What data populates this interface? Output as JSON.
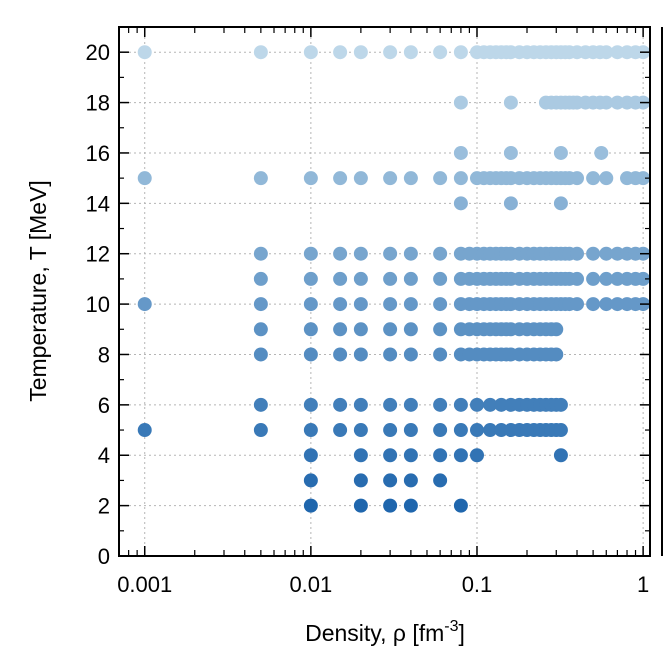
{
  "chart_data": {
    "type": "scatter",
    "title": "",
    "xlabel": "Density, ρ [fm",
    "xlabel_sup": "-3",
    "xlabel_end": "]",
    "ylabel": "Temperature, T [MeV]",
    "x_scale": "log",
    "xlim": [
      0.0007,
      1.1
    ],
    "ylim": [
      0,
      21
    ],
    "x_ticks": [
      0.001,
      0.01,
      0.1,
      1
    ],
    "x_tick_labels": [
      "0.001",
      "0.01",
      "0.1",
      "1"
    ],
    "y_ticks": [
      0,
      2,
      4,
      6,
      8,
      10,
      12,
      14,
      16,
      18,
      20
    ],
    "y_tick_labels": [
      "0",
      "2",
      "4",
      "6",
      "8",
      "10",
      "12",
      "14",
      "16",
      "18",
      "20"
    ],
    "grid": true,
    "legend": "none",
    "color_by": "temperature",
    "colors": {
      "low_temperature": "#1f66ad",
      "high_temperature": "#bdd7e9"
    },
    "rows": [
      {
        "T": 2,
        "rho": [
          0.01,
          0.02,
          0.03,
          0.04,
          0.08
        ]
      },
      {
        "T": 3,
        "rho": [
          0.01,
          0.02,
          0.03,
          0.04,
          0.06
        ]
      },
      {
        "T": 4,
        "rho": [
          0.01,
          0.02,
          0.03,
          0.04,
          0.06,
          0.08,
          0.1,
          0.32
        ]
      },
      {
        "T": 5,
        "rho": [
          0.001,
          0.005,
          0.01,
          0.015,
          0.02,
          0.03,
          0.04,
          0.06,
          0.08,
          0.1,
          0.12,
          0.14,
          0.16,
          0.18,
          0.2,
          0.22,
          0.24,
          0.26,
          0.28,
          0.3,
          0.32
        ]
      },
      {
        "T": 6,
        "rho": [
          0.005,
          0.01,
          0.015,
          0.02,
          0.03,
          0.04,
          0.06,
          0.08,
          0.1,
          0.12,
          0.14,
          0.16,
          0.18,
          0.2,
          0.22,
          0.24,
          0.26,
          0.28,
          0.3,
          0.32
        ]
      },
      {
        "T": 8,
        "rho": [
          0.005,
          0.01,
          0.015,
          0.02,
          0.03,
          0.04,
          0.06,
          0.08,
          0.09,
          0.1,
          0.11,
          0.12,
          0.13,
          0.14,
          0.15,
          0.16,
          0.18,
          0.2,
          0.22,
          0.24,
          0.26,
          0.28,
          0.3
        ]
      },
      {
        "T": 9,
        "rho": [
          0.005,
          0.01,
          0.015,
          0.02,
          0.03,
          0.04,
          0.06,
          0.08,
          0.09,
          0.1,
          0.11,
          0.12,
          0.13,
          0.14,
          0.15,
          0.16,
          0.18,
          0.2,
          0.22,
          0.24,
          0.26,
          0.28,
          0.3
        ]
      },
      {
        "T": 10,
        "rho": [
          0.001,
          0.005,
          0.01,
          0.015,
          0.02,
          0.03,
          0.04,
          0.06,
          0.08,
          0.09,
          0.1,
          0.11,
          0.12,
          0.13,
          0.14,
          0.15,
          0.16,
          0.18,
          0.2,
          0.22,
          0.24,
          0.26,
          0.28,
          0.3,
          0.32,
          0.34,
          0.36,
          0.4,
          0.5,
          0.6,
          0.7,
          0.8,
          0.9,
          1.0
        ]
      },
      {
        "T": 11,
        "rho": [
          0.005,
          0.01,
          0.015,
          0.02,
          0.03,
          0.04,
          0.06,
          0.08,
          0.09,
          0.1,
          0.11,
          0.12,
          0.13,
          0.14,
          0.15,
          0.16,
          0.18,
          0.2,
          0.22,
          0.24,
          0.26,
          0.28,
          0.3,
          0.32,
          0.34,
          0.36,
          0.4,
          0.5,
          0.6,
          0.7,
          0.8,
          0.9,
          1.0
        ]
      },
      {
        "T": 12,
        "rho": [
          0.005,
          0.01,
          0.015,
          0.02,
          0.03,
          0.04,
          0.06,
          0.08,
          0.09,
          0.1,
          0.11,
          0.12,
          0.13,
          0.14,
          0.15,
          0.16,
          0.18,
          0.2,
          0.22,
          0.24,
          0.26,
          0.28,
          0.3,
          0.32,
          0.34,
          0.36,
          0.4,
          0.5,
          0.6,
          0.7,
          0.8,
          0.9,
          1.0
        ]
      },
      {
        "T": 14,
        "rho": [
          0.08,
          0.16,
          0.32
        ]
      },
      {
        "T": 15,
        "rho": [
          0.001,
          0.005,
          0.01,
          0.015,
          0.02,
          0.03,
          0.04,
          0.06,
          0.08,
          0.1,
          0.11,
          0.12,
          0.13,
          0.14,
          0.15,
          0.16,
          0.18,
          0.2,
          0.22,
          0.24,
          0.26,
          0.28,
          0.3,
          0.32,
          0.34,
          0.36,
          0.4,
          0.5,
          0.6,
          0.8,
          0.9,
          1.0
        ]
      },
      {
        "T": 16,
        "rho": [
          0.08,
          0.16,
          0.32,
          0.56
        ]
      },
      {
        "T": 18,
        "rho": [
          0.08,
          0.16,
          0.26,
          0.28,
          0.3,
          0.32,
          0.34,
          0.36,
          0.38,
          0.4,
          0.45,
          0.5,
          0.55,
          0.6,
          0.7,
          0.8,
          0.9,
          1.0
        ]
      },
      {
        "T": 20,
        "rho": [
          0.001,
          0.005,
          0.01,
          0.015,
          0.02,
          0.03,
          0.04,
          0.06,
          0.08,
          0.1,
          0.11,
          0.12,
          0.13,
          0.14,
          0.15,
          0.16,
          0.18,
          0.2,
          0.22,
          0.24,
          0.26,
          0.28,
          0.3,
          0.32,
          0.34,
          0.36,
          0.4,
          0.45,
          0.5,
          0.55,
          0.6,
          0.7,
          0.8,
          0.9,
          1.0
        ]
      }
    ]
  }
}
